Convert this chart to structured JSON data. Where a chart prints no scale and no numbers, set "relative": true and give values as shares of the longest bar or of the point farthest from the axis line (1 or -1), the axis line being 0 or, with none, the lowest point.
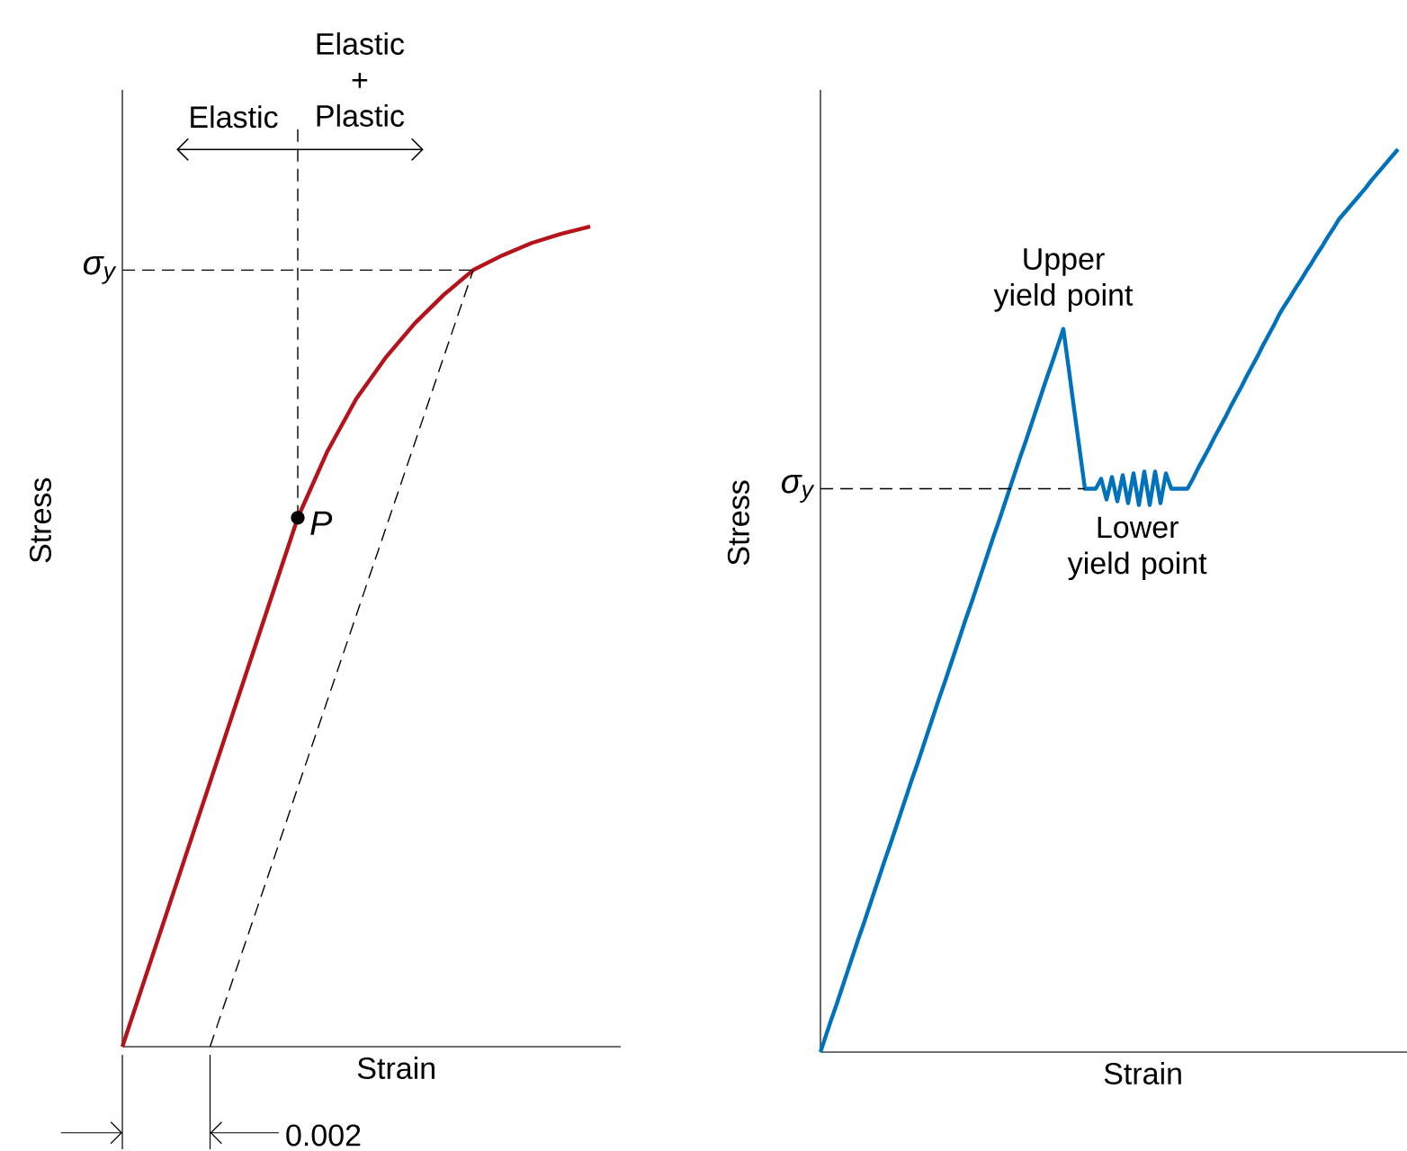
{
  "chart_data": [
    {
      "type": "line",
      "relative": true,
      "xlabel": "Strain",
      "ylabel": "Stress",
      "marker": "none",
      "categories": [
        null,
        null,
        null,
        null,
        null,
        null,
        null,
        null,
        null,
        null,
        null,
        null,
        null,
        null,
        null,
        null,
        null
      ],
      "series": [
        {
          "color": "#b5121b",
          "values": [
            0,
            0.1075,
            0.215,
            0.3225,
            0.43,
            0.5375,
            0.645,
            0.725,
            0.79,
            0.84,
            0.882,
            0.917,
            0.947,
            0.965,
            0.98,
            0.991,
            1
          ]
        },
        {
          "color": "#000000",
          "line_style": "dashed",
          "values": [
            null,
            null,
            null,
            0,
            0.105,
            0.21,
            0.316,
            0.421,
            0.526,
            0.631,
            0.736,
            0.842,
            0.947,
            null,
            null,
            null,
            null
          ]
        }
      ],
      "ref_lines": [
        {
          "axis": "y",
          "value": 0.947,
          "label": "σ$_{y}$",
          "line_style": "dashed",
          "color": "#000000"
        }
      ],
      "annotations": [
        "Elastic + Plastic",
        "Elastic",
        "P",
        "0.002"
      ]
    },
    {
      "type": "line",
      "relative": true,
      "xlabel": "Strain",
      "ylabel": "Stress",
      "marker": "none",
      "categories": [
        null,
        null,
        null,
        null,
        null,
        null,
        null,
        null,
        null,
        null,
        null,
        null,
        null,
        null,
        null,
        null,
        null,
        null,
        null,
        null,
        null,
        null,
        null,
        null,
        null,
        null,
        null,
        null,
        null,
        null,
        null,
        null,
        null,
        null,
        null,
        null,
        null,
        null,
        null,
        null,
        null,
        null,
        null,
        null,
        null,
        null,
        null,
        null,
        null,
        null,
        null,
        null,
        null,
        null,
        null,
        null,
        null,
        null,
        null,
        null,
        null,
        null,
        null,
        null,
        null,
        null,
        null,
        null,
        null,
        null,
        null,
        null,
        null,
        null,
        null,
        null,
        null,
        null,
        null,
        null,
        null,
        null,
        null,
        null,
        null,
        null,
        null,
        null,
        null,
        null,
        null,
        null,
        null,
        null,
        null,
        null,
        null,
        null,
        null,
        null,
        null,
        null,
        null,
        null,
        null,
        null,
        null,
        null
      ],
      "series": [
        {
          "color": "#0072bc",
          "values": [
            0,
            0.018,
            0.036,
            0.053,
            0.071,
            0.089,
            0.107,
            0.125,
            0.142,
            0.16,
            0.178,
            0.196,
            0.214,
            0.231,
            0.249,
            0.267,
            0.285,
            0.303,
            0.32,
            0.338,
            0.356,
            0.374,
            0.392,
            0.409,
            0.427,
            0.445,
            0.463,
            0.481,
            0.498,
            0.516,
            0.534,
            0.552,
            0.57,
            0.587,
            0.605,
            0.623,
            0.641,
            0.659,
            0.676,
            0.694,
            0.712,
            0.73,
            0.748,
            0.765,
            0.783,
            0.801,
            0.757,
            0.712,
            0.668,
            0.624,
            0.624,
            0.624,
            0.635,
            0.612,
            0.637,
            0.61,
            0.639,
            0.608,
            0.641,
            0.606,
            0.643,
            0.606,
            0.643,
            0.608,
            0.641,
            0.624,
            0.624,
            0.624,
            0.624,
            0.635,
            0.647,
            0.658,
            0.669,
            0.681,
            0.692,
            0.703,
            0.715,
            0.726,
            0.737,
            0.749,
            0.76,
            0.771,
            0.783,
            0.794,
            0.805,
            0.817,
            0.827,
            0.836,
            0.846,
            0.855,
            0.865,
            0.874,
            0.884,
            0.893,
            0.903,
            0.912,
            0.922,
            0.929,
            0.936,
            0.943,
            0.95,
            0.957,
            0.965,
            0.972,
            0.979,
            0.986,
            0.993,
            1
          ]
        }
      ],
      "ref_lines": [
        {
          "axis": "y",
          "value": 0.624,
          "label": "σ$_{y}$",
          "line_style": "dashed",
          "color": "#000000"
        }
      ],
      "annotations": [
        "Upper yield point",
        "Lower yield point"
      ]
    }
  ]
}
